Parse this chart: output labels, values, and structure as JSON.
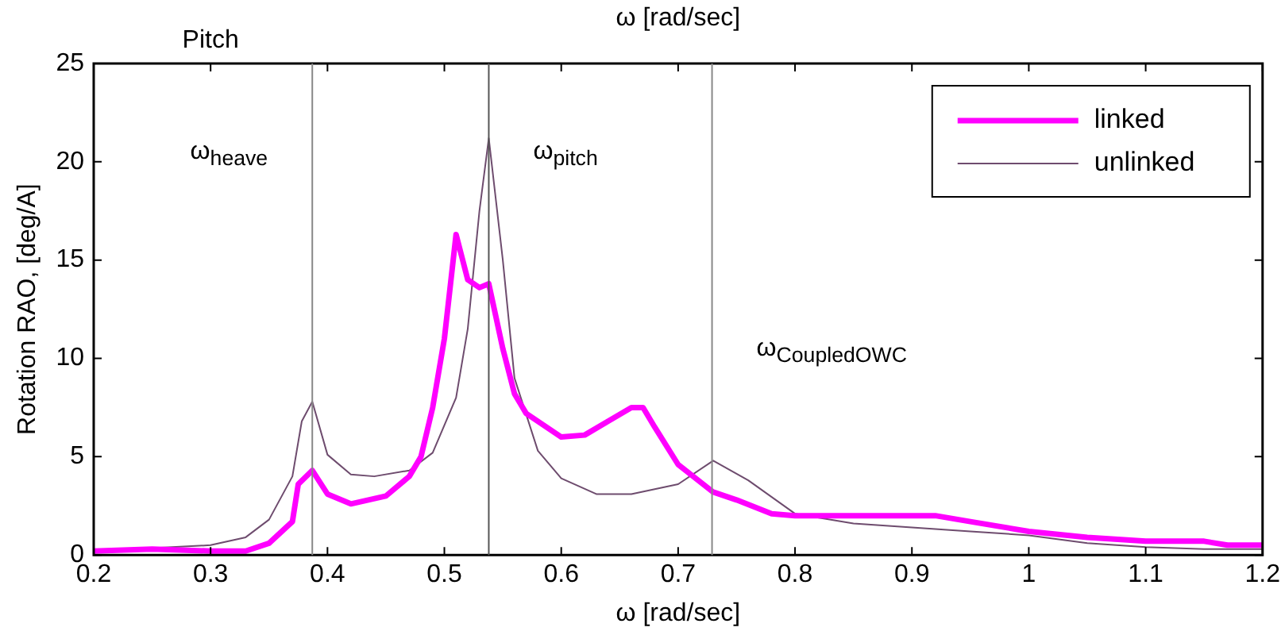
{
  "chart_data": {
    "type": "line",
    "title": "Pitch",
    "xlabel": "ω [rad/sec]",
    "ylabel": "Rotation RAO, [deg/A]",
    "xlim": [
      0.2,
      1.2
    ],
    "xticks": [
      0.2,
      0.3,
      0.4,
      0.5,
      0.6,
      0.7,
      0.8,
      0.9,
      1,
      1.1,
      1.2
    ],
    "ylim": [
      0,
      25
    ],
    "yticks": [
      0,
      5,
      10,
      15,
      20,
      25
    ],
    "grid": false,
    "legend": "top right",
    "marker": "none",
    "line_style": "solid",
    "series": [
      {
        "name": "linked",
        "color": "#ff00ff",
        "x": [
          0.2,
          0.25,
          0.3,
          0.33,
          0.35,
          0.37,
          0.375,
          0.387,
          0.4,
          0.42,
          0.45,
          0.47,
          0.48,
          0.49,
          0.5,
          0.51,
          0.52,
          0.53,
          0.538,
          0.55,
          0.56,
          0.57,
          0.6,
          0.62,
          0.64,
          0.66,
          0.67,
          0.68,
          0.7,
          0.73,
          0.75,
          0.78,
          0.8,
          0.92,
          0.95,
          1.0,
          1.05,
          1.1,
          1.15,
          1.17,
          1.2
        ],
        "values": [
          0.2,
          0.3,
          0.2,
          0.2,
          0.6,
          1.7,
          3.6,
          4.3,
          3.1,
          2.6,
          3.0,
          4.0,
          5.0,
          7.5,
          11,
          16.3,
          14.0,
          13.6,
          13.8,
          10.5,
          8.2,
          7.2,
          6.0,
          6.1,
          6.8,
          7.5,
          7.5,
          6.5,
          4.6,
          3.2,
          2.8,
          2.1,
          2.0,
          2.0,
          1.7,
          1.2,
          0.9,
          0.7,
          0.7,
          0.5,
          0.5
        ]
      },
      {
        "name": "unlinked",
        "color": "#6e4c6e",
        "x": [
          0.2,
          0.3,
          0.33,
          0.35,
          0.37,
          0.378,
          0.387,
          0.4,
          0.42,
          0.44,
          0.47,
          0.49,
          0.51,
          0.52,
          0.53,
          0.538,
          0.55,
          0.56,
          0.58,
          0.6,
          0.63,
          0.66,
          0.7,
          0.73,
          0.76,
          0.8,
          0.85,
          0.9,
          0.95,
          1.0,
          1.05,
          1.1,
          1.15,
          1.2
        ],
        "values": [
          0.2,
          0.5,
          0.9,
          1.8,
          4.0,
          6.8,
          7.8,
          5.1,
          4.1,
          4.0,
          4.3,
          5.2,
          8.0,
          11.5,
          17.5,
          21.2,
          15,
          9.0,
          5.3,
          3.9,
          3.1,
          3.1,
          3.6,
          4.8,
          3.8,
          2.1,
          1.6,
          1.4,
          1.2,
          1.0,
          0.6,
          0.4,
          0.3,
          0.3
        ]
      }
    ],
    "ref_lines": [
      {
        "axis": "x",
        "value": 0.387,
        "color": "#888888",
        "label": "ω$_{heave}$"
      },
      {
        "axis": "x",
        "value": 0.538,
        "color": "#555555",
        "label": "ω$_{pitch}$"
      },
      {
        "axis": "x",
        "value": 0.729,
        "color": "#888888",
        "label": "ω$_{CoupledOWC}$"
      }
    ],
    "annotations": [
      "ω [rad/sec]"
    ]
  }
}
